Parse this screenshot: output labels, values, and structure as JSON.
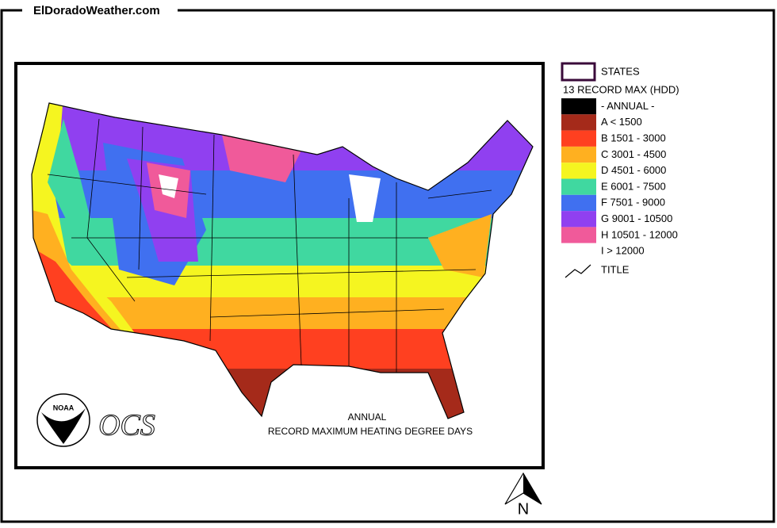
{
  "header": {
    "title": "ElDoradoWeather.com"
  },
  "legend": {
    "states_label": "STATES",
    "heading": "13 RECORD MAX (HDD)",
    "items": [
      {
        "label": "- ANNUAL -",
        "color": "#000000"
      },
      {
        "label": "A < 1500",
        "color": "#a52a1a"
      },
      {
        "label": "B 1501 - 3000",
        "color": "#ff4020"
      },
      {
        "label": "C 3001 - 4500",
        "color": "#ffb020"
      },
      {
        "label": "D 4501 - 6000",
        "color": "#f5f520"
      },
      {
        "label": "E 6001 - 7500",
        "color": "#40d8a0"
      },
      {
        "label": "F 7501 - 9000",
        "color": "#4070f0"
      },
      {
        "label": "G 9001 - 10500",
        "color": "#9040f0"
      },
      {
        "label": "H 10501 - 12000",
        "color": "#f05a9a"
      },
      {
        "label": "I > 12000",
        "color": "#ffffff"
      }
    ],
    "title_label": "TITLE"
  },
  "map": {
    "title_line1": "ANNUAL",
    "title_line2": "RECORD MAXIMUM HEATING DEGREE DAYS",
    "logo_text": "NOAA",
    "ocs_text": "OCS"
  },
  "compass": {
    "label": "N"
  }
}
